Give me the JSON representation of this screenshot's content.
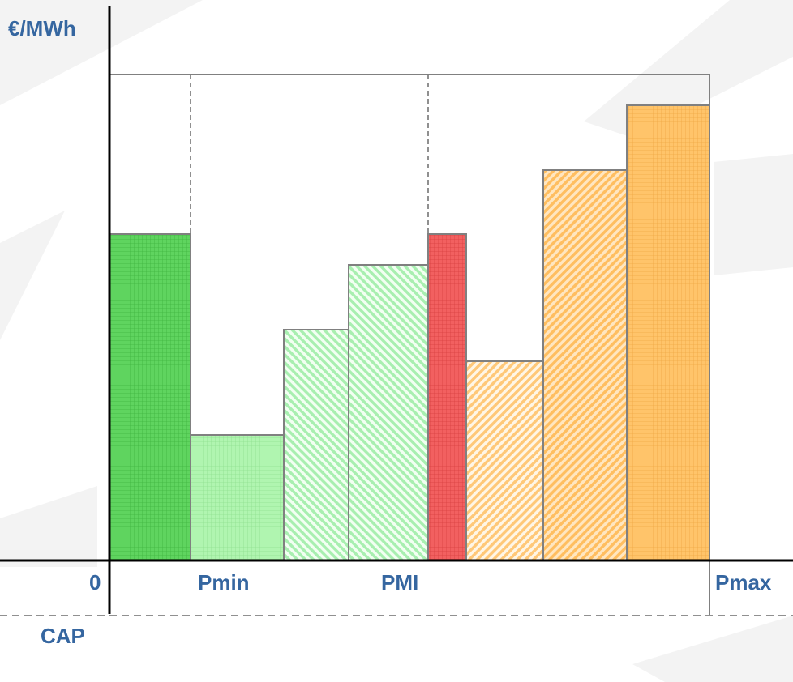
{
  "axes": {
    "y_label": "€/MWh",
    "origin": "0",
    "cap": "CAP"
  },
  "x_labels": {
    "pmin": "Pmin",
    "pmi": "PMI",
    "pmax": "Pmax"
  }
}
